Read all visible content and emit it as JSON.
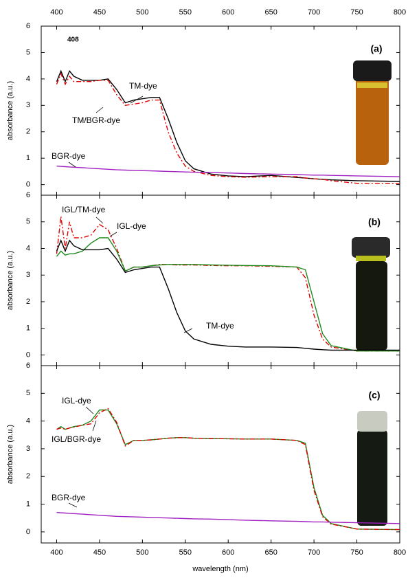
{
  "chart_data": [
    {
      "type": "line",
      "panel_label": "(a)",
      "y_label": "absorbance (a.u.)",
      "annotation": "408",
      "xlim": [
        382,
        800
      ],
      "xticks": [
        400,
        450,
        500,
        550,
        600,
        650,
        700,
        750,
        800
      ],
      "ylim": [
        -0.4,
        6
      ],
      "yticks": [
        0,
        1,
        2,
        3,
        4,
        5,
        6
      ],
      "x": [
        400,
        405,
        410,
        415,
        420,
        430,
        440,
        450,
        460,
        470,
        480,
        490,
        500,
        510,
        520,
        530,
        540,
        550,
        560,
        580,
        600,
        620,
        650,
        680,
        690,
        700,
        710,
        720,
        750,
        800
      ],
      "series": [
        {
          "name": "TM-dye",
          "color": "#000000",
          "linestyle": "solid",
          "values": [
            3.9,
            4.3,
            3.9,
            4.3,
            4.1,
            3.95,
            3.95,
            3.95,
            4.0,
            3.6,
            3.1,
            3.2,
            3.25,
            3.3,
            3.3,
            2.5,
            1.6,
            0.9,
            0.6,
            0.4,
            0.33,
            0.3,
            0.35,
            0.27,
            0.25,
            0.22,
            0.2,
            0.18,
            0.15,
            0.12
          ]
        },
        {
          "name": "TM/BGR-dye",
          "color": "#e00000",
          "linestyle": "dashdot",
          "values": [
            3.8,
            4.2,
            3.8,
            4.1,
            3.9,
            3.9,
            3.9,
            3.95,
            3.95,
            3.4,
            3.0,
            3.05,
            3.1,
            3.2,
            3.2,
            2.0,
            1.2,
            0.7,
            0.5,
            0.35,
            0.3,
            0.28,
            0.3,
            0.3,
            0.25,
            0.22,
            0.2,
            0.15,
            0.05,
            0.05
          ]
        },
        {
          "name": "BGR-dye",
          "color": "#a020c0",
          "linestyle": "solid",
          "values": [
            0.7,
            0.69,
            0.68,
            0.67,
            0.66,
            0.64,
            0.62,
            0.6,
            0.58,
            0.56,
            0.55,
            0.54,
            0.53,
            0.52,
            0.51,
            0.5,
            0.49,
            0.48,
            0.47,
            0.46,
            0.44,
            0.42,
            0.4,
            0.38,
            0.37,
            0.36,
            0.36,
            0.35,
            0.33,
            0.3
          ]
        }
      ]
    },
    {
      "type": "line",
      "panel_label": "(b)",
      "y_label": "absorbance (a.u.)",
      "xlim": [
        382,
        800
      ],
      "xticks": [
        400,
        450,
        500,
        550,
        600,
        650,
        700,
        750,
        800
      ],
      "ylim": [
        -0.4,
        6
      ],
      "yticks": [
        0,
        1,
        2,
        3,
        4,
        5,
        6
      ],
      "x": [
        400,
        405,
        410,
        415,
        420,
        430,
        440,
        450,
        460,
        470,
        480,
        490,
        500,
        510,
        520,
        530,
        540,
        550,
        560,
        580,
        600,
        620,
        650,
        680,
        690,
        700,
        710,
        720,
        750,
        800
      ],
      "series": [
        {
          "name": "IGL/TM-dye",
          "color": "#e00000",
          "linestyle": "dashdot",
          "values": [
            3.8,
            5.2,
            4.0,
            5.0,
            4.4,
            4.4,
            4.5,
            4.9,
            4.7,
            4.0,
            3.15,
            3.3,
            3.3,
            3.35,
            3.4,
            3.4,
            3.38,
            3.38,
            3.38,
            3.36,
            3.35,
            3.35,
            3.33,
            3.3,
            2.9,
            1.5,
            0.6,
            0.3,
            0.15,
            0.15
          ]
        },
        {
          "name": "IGL-dye",
          "color": "#1a8a1a",
          "linestyle": "solid",
          "values": [
            3.7,
            3.9,
            3.75,
            3.8,
            3.8,
            3.9,
            4.2,
            4.4,
            4.4,
            3.9,
            3.15,
            3.3,
            3.3,
            3.35,
            3.38,
            3.4,
            3.4,
            3.4,
            3.4,
            3.38,
            3.37,
            3.36,
            3.35,
            3.3,
            3.2,
            2.0,
            0.8,
            0.35,
            0.15,
            0.15
          ]
        },
        {
          "name": "TM-dye",
          "color": "#000000",
          "linestyle": "solid",
          "values": [
            3.9,
            4.3,
            3.9,
            4.3,
            4.1,
            3.95,
            3.95,
            3.95,
            4.0,
            3.6,
            3.1,
            3.2,
            3.25,
            3.3,
            3.3,
            2.5,
            1.6,
            0.9,
            0.6,
            0.4,
            0.33,
            0.3,
            0.3,
            0.28,
            0.25,
            0.22,
            0.2,
            0.18,
            0.18,
            0.18
          ]
        }
      ]
    },
    {
      "type": "line",
      "panel_label": "(c)",
      "y_label": "absorbance (a.u.)",
      "x_label": "wavelength (nm)",
      "xlim": [
        382,
        800
      ],
      "xticks": [
        400,
        450,
        500,
        550,
        600,
        650,
        700,
        750,
        800
      ],
      "ylim": [
        -0.4,
        6
      ],
      "yticks": [
        0,
        1,
        2,
        3,
        4,
        5,
        6
      ],
      "x": [
        400,
        405,
        410,
        415,
        420,
        430,
        440,
        450,
        460,
        470,
        480,
        490,
        500,
        510,
        520,
        530,
        540,
        550,
        560,
        580,
        600,
        620,
        650,
        680,
        690,
        700,
        710,
        720,
        750,
        800
      ],
      "series": [
        {
          "name": "IGL-dye",
          "color": "#1a8a1a",
          "linestyle": "solid",
          "values": [
            3.7,
            3.8,
            3.7,
            3.75,
            3.8,
            3.85,
            4.0,
            4.4,
            4.4,
            3.9,
            3.15,
            3.3,
            3.3,
            3.32,
            3.35,
            3.38,
            3.4,
            3.4,
            3.38,
            3.37,
            3.36,
            3.35,
            3.35,
            3.3,
            3.2,
            1.6,
            0.6,
            0.3,
            0.1,
            0.08
          ]
        },
        {
          "name": "IGL/BGR-dye",
          "color": "#e00000",
          "linestyle": "dashdot",
          "values": [
            3.7,
            3.75,
            3.7,
            3.75,
            3.78,
            3.85,
            3.9,
            4.3,
            4.45,
            3.95,
            3.1,
            3.3,
            3.3,
            3.32,
            3.35,
            3.38,
            3.4,
            3.4,
            3.38,
            3.37,
            3.36,
            3.35,
            3.35,
            3.3,
            3.15,
            1.5,
            0.55,
            0.28,
            0.1,
            0.08
          ]
        },
        {
          "name": "BGR-dye",
          "color": "#a020c0",
          "linestyle": "solid",
          "values": [
            0.7,
            0.69,
            0.68,
            0.67,
            0.66,
            0.64,
            0.62,
            0.6,
            0.58,
            0.56,
            0.55,
            0.54,
            0.53,
            0.52,
            0.51,
            0.5,
            0.49,
            0.48,
            0.47,
            0.46,
            0.44,
            0.42,
            0.4,
            0.38,
            0.37,
            0.36,
            0.36,
            0.35,
            0.33,
            0.3
          ]
        }
      ]
    }
  ]
}
